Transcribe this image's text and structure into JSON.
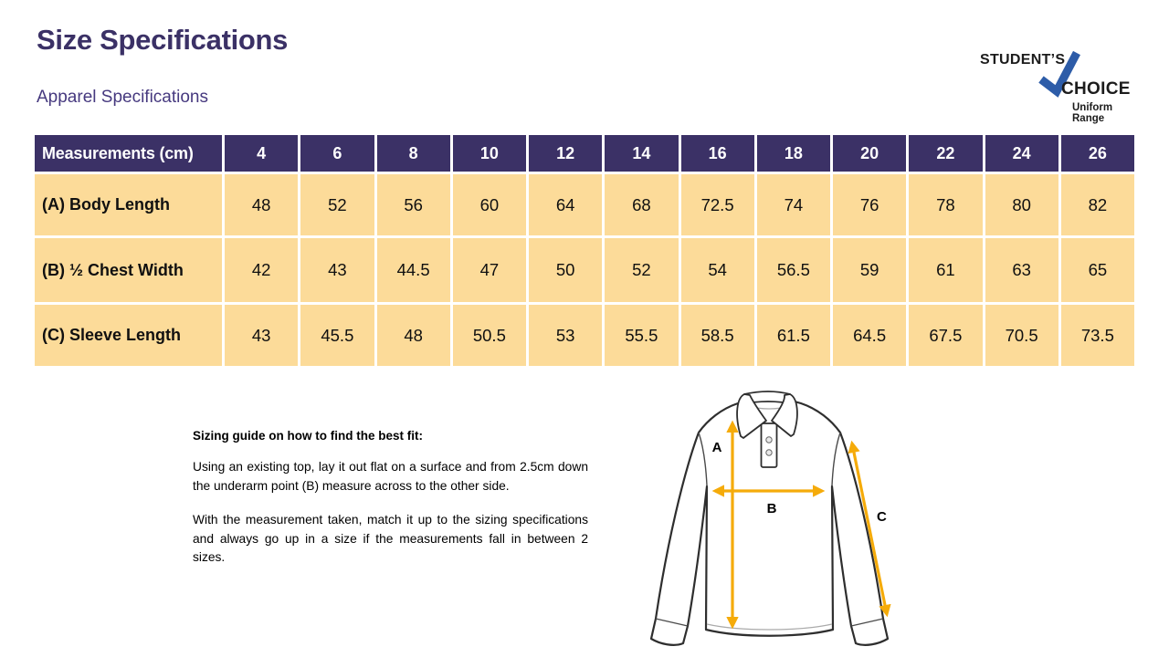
{
  "page": {
    "title": "Size Specifications",
    "subtitle": "Apparel Specifications"
  },
  "logo": {
    "brand_top": "STUDENT’S",
    "brand_bottom": "CHOICE",
    "tagline": "Uniform Range"
  },
  "table": {
    "header": [
      "Measurements (cm)",
      "4",
      "6",
      "8",
      "10",
      "12",
      "14",
      "16",
      "18",
      "20",
      "22",
      "24",
      "26"
    ],
    "rows": [
      {
        "label": "(A) Body Length",
        "values": [
          "48",
          "52",
          "56",
          "60",
          "64",
          "68",
          "72.5",
          "74",
          "76",
          "78",
          "80",
          "82"
        ]
      },
      {
        "label": "(B) ½ Chest Width",
        "values": [
          "42",
          "43",
          "44.5",
          "47",
          "50",
          "52",
          "54",
          "56.5",
          "59",
          "61",
          "63",
          "65"
        ]
      },
      {
        "label": "(C) Sleeve Length",
        "values": [
          "43",
          "45.5",
          "48",
          "50.5",
          "53",
          "55.5",
          "58.5",
          "61.5",
          "64.5",
          "67.5",
          "70.5",
          "73.5"
        ]
      }
    ]
  },
  "guide": {
    "heading": "Sizing guide on how to find the best fit:",
    "para1": "Using an existing top, lay it out flat on a surface and from 2.5cm down the underarm point (B) measure across to the other side.",
    "para2": "With the measurement taken, match it up to the sizing specifications and always go up in a size if the measurements fall in between 2 sizes."
  },
  "diagram": {
    "labels": {
      "a": "A",
      "b": "B",
      "c": "C"
    }
  },
  "colors": {
    "header_purple": "#3B3166",
    "subtitle_purple": "#46397F",
    "row_tan": "#FCDB99",
    "arrow_gold": "#F5AB0A",
    "check_blue": "#2D5CA8"
  }
}
